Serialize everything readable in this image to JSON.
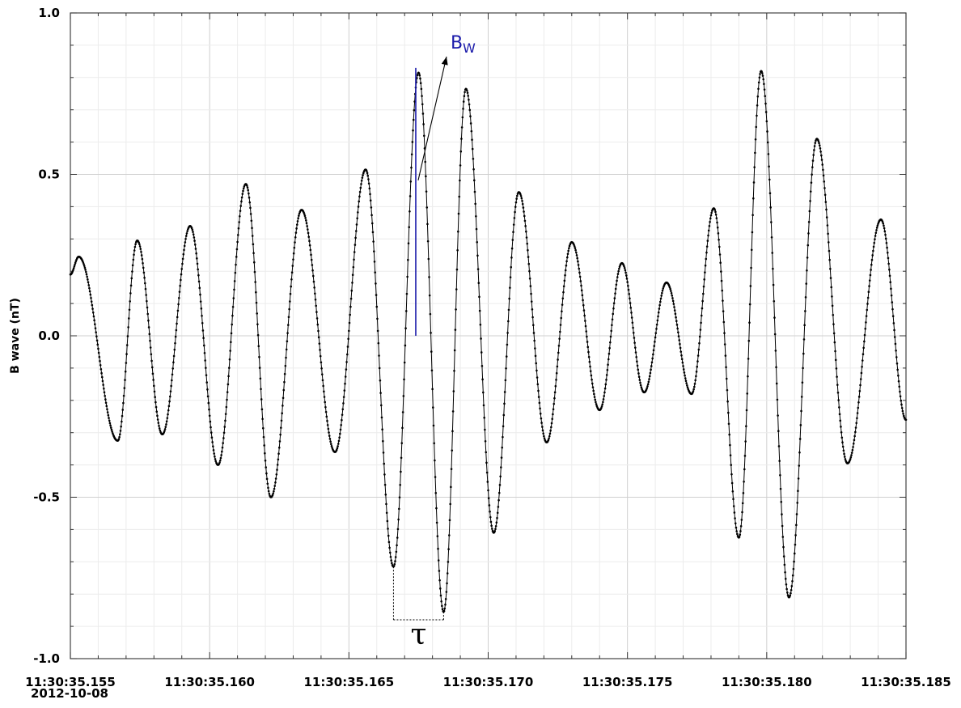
{
  "chart_data": {
    "type": "line",
    "xlabel": "",
    "ylabel": "B wave  (nT)",
    "date_label": "2012-10-08",
    "ylim": [
      -1.0,
      1.0
    ],
    "xlim": [
      "11:30:35.155",
      "11:30:35.185"
    ],
    "x_tick_labels": [
      "11:30:35.155",
      "11:30:35.160",
      "11:30:35.165",
      "11:30:35.170",
      "11:30:35.175",
      "11:30:35.180",
      "11:30:35.185"
    ],
    "y_tick_labels": [
      "-1.0",
      "-0.5",
      "0.0",
      "0.5",
      "1.0"
    ],
    "grid": true,
    "series": [
      {
        "color": "#000000",
        "marker": "dot",
        "extrema": [
          {
            "t": "11:30:35.155",
            "y": 0.19
          },
          {
            "t": "11:30:35.1553",
            "y": 0.245
          },
          {
            "t": "11:30:35.1567",
            "y": -0.325
          },
          {
            "t": "11:30:35.1574",
            "y": 0.295
          },
          {
            "t": "11:30:35.1583",
            "y": -0.305
          },
          {
            "t": "11:30:35.1593",
            "y": 0.34
          },
          {
            "t": "11:30:35.1603",
            "y": -0.4
          },
          {
            "t": "11:30:35.1613",
            "y": 0.47
          },
          {
            "t": "11:30:35.1622",
            "y": -0.5
          },
          {
            "t": "11:30:35.1633",
            "y": 0.39
          },
          {
            "t": "11:30:35.1645",
            "y": -0.36
          },
          {
            "t": "11:30:35.1656",
            "y": 0.515
          },
          {
            "t": "11:30:35.1666",
            "y": -0.715
          },
          {
            "t": "11:30:35.1675",
            "y": 0.815
          },
          {
            "t": "11:30:35.1684",
            "y": -0.855
          },
          {
            "t": "11:30:35.1692",
            "y": 0.765
          },
          {
            "t": "11:30:35.1702",
            "y": -0.61
          },
          {
            "t": "11:30:35.1711",
            "y": 0.445
          },
          {
            "t": "11:30:35.1721",
            "y": -0.33
          },
          {
            "t": "11:30:35.1730",
            "y": 0.29
          },
          {
            "t": "11:30:35.1740",
            "y": -0.23
          },
          {
            "t": "11:30:35.1748",
            "y": 0.225
          },
          {
            "t": "11:30:35.1756",
            "y": -0.175
          },
          {
            "t": "11:30:35.1764",
            "y": 0.165
          },
          {
            "t": "11:30:35.1773",
            "y": -0.18
          },
          {
            "t": "11:30:35.1781",
            "y": 0.395
          },
          {
            "t": "11:30:35.1790",
            "y": -0.625
          },
          {
            "t": "11:30:35.1798",
            "y": 0.82
          },
          {
            "t": "11:30:35.1808",
            "y": -0.81
          },
          {
            "t": "11:30:35.1818",
            "y": 0.61
          },
          {
            "t": "11:30:35.1829",
            "y": -0.395
          },
          {
            "t": "11:30:35.1841",
            "y": 0.36
          },
          {
            "t": "11:30:35.185",
            "y": -0.26
          }
        ]
      }
    ],
    "annotations": {
      "bw_label_main": "B",
      "bw_label_sub": "W",
      "bw_color": "#1a1aaa",
      "bw_value": 0.83,
      "bw_time": "11:30:35.1674",
      "tau_label": "τ",
      "tau_t1": "11:30:35.1666",
      "tau_t2": "11:30:35.1684"
    }
  }
}
